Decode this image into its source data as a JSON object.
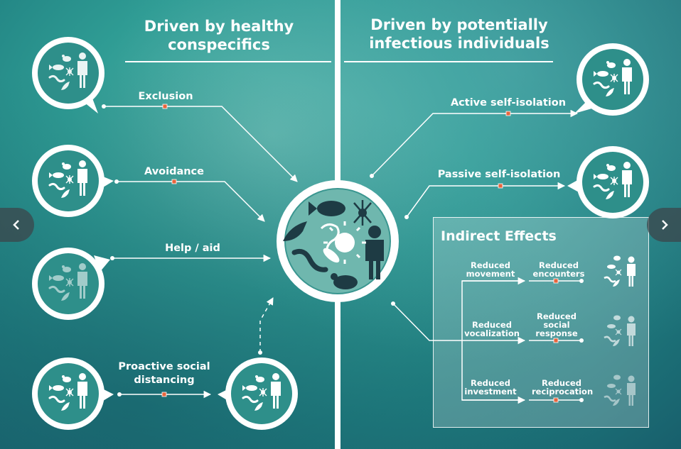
{
  "headings": {
    "left": "Driven by healthy conspecifics",
    "right": "Driven by potentially infectious individuals"
  },
  "left_labels": {
    "exclusion": "Exclusion",
    "avoidance": "Avoidance",
    "help_aid": "Help / aid",
    "proactive": "Proactive social distancing"
  },
  "right_labels": {
    "active": "Active self-isolation",
    "passive": "Passive self-isolation"
  },
  "indirect": {
    "title": "Indirect Effects",
    "rows": [
      {
        "left": "Reduced movement",
        "right": "Reduced encounters"
      },
      {
        "left": "Reduced vocalization",
        "right": "Reduced social response"
      },
      {
        "left": "Reduced investment",
        "right": "Reduced reciprocation"
      }
    ]
  },
  "colors": {
    "accent_marker": "#e8643c",
    "badge_fill": "#2e8f8a",
    "line": "#ffffff"
  },
  "icons": [
    "fish-icon",
    "mouse-icon",
    "insect-icon",
    "lizard-icon",
    "bird-icon",
    "person-icon",
    "bacterium-icon"
  ],
  "navigation": {
    "prev": "chevron-left-icon",
    "next": "chevron-right-icon"
  }
}
